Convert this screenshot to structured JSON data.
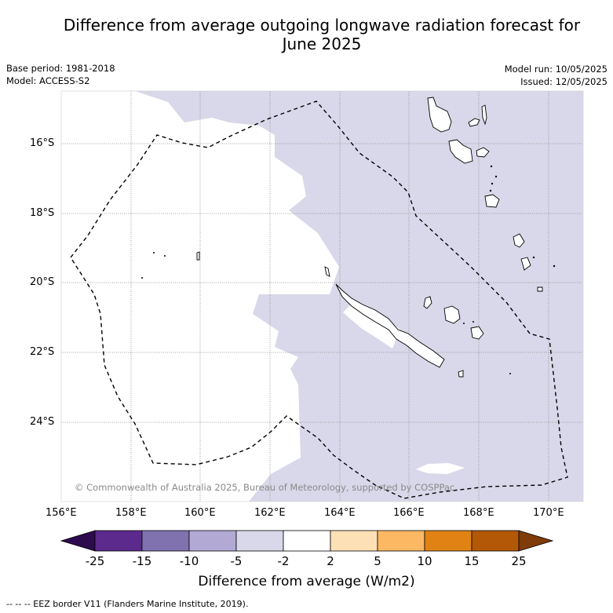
{
  "title": "Difference from average outgoing longwave radiation forecast for June 2025",
  "title_line1": "Difference from average outgoing longwave radiation forecast for",
  "title_line2": "June 2025",
  "base_period": "Base period: 1981-2018",
  "model": "Model: ACCESS-S2",
  "model_run": "Model run: 10/05/2025",
  "issued": "Issued: 12/05/2025",
  "copyright": "© Commonwealth of Australia 2025, Bureau of Meteorology, supported by COSPPac",
  "lat_ticks": [
    "16°S",
    "18°S",
    "20°S",
    "22°S",
    "24°S"
  ],
  "lon_ticks": [
    "156°E",
    "158°E",
    "160°E",
    "162°E",
    "164°E",
    "166°E",
    "168°E",
    "170°E"
  ],
  "colorbar": {
    "title": "Difference from average (W/m2)",
    "labels": [
      "-25",
      "-15",
      "-10",
      "-5",
      "-2",
      "2",
      "5",
      "10",
      "15",
      "25"
    ],
    "colors": [
      "#2e0a4e",
      "#5b2a8c",
      "#7f72ae",
      "#b2a9d4",
      "#d8d8ea",
      "#ffffff",
      "#fde0b6",
      "#fdb863",
      "#e08214",
      "#b35806",
      "#7f3b08"
    ]
  },
  "footnote": "--  --  -- EEZ border V11 (Flanders Marine Institute, 2019).",
  "colors": {
    "negative_fill": "#d8d8ea",
    "land_fill": "#ffffff",
    "grid": "#888888"
  }
}
